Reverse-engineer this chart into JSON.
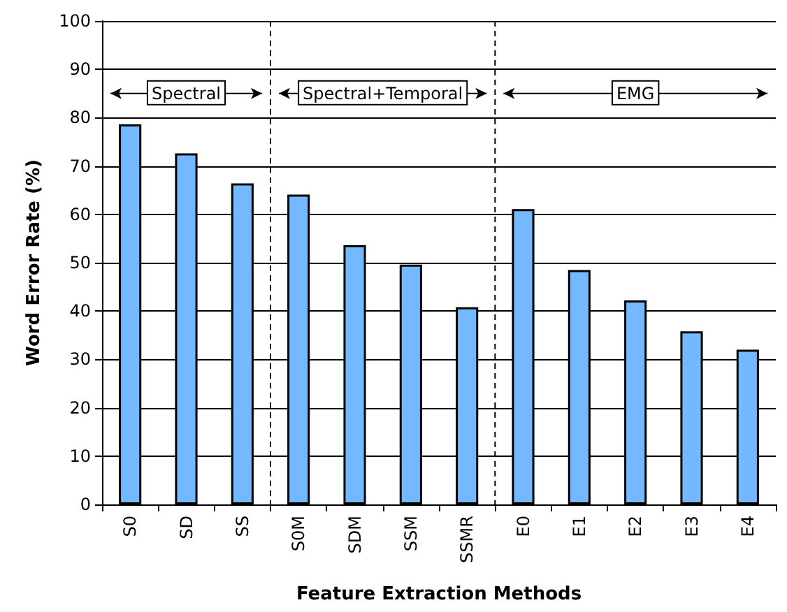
{
  "chart_data": {
    "type": "bar",
    "xlabel": "Feature Extraction Methods",
    "ylabel": "Word Error Rate (%)",
    "categories": [
      "S0",
      "SD",
      "SS",
      "S0M",
      "SDM",
      "SSM",
      "SSMR",
      "E0",
      "E1",
      "E2",
      "E3",
      "E4"
    ],
    "values": [
      78.6,
      72.6,
      66.4,
      64.1,
      53.6,
      49.6,
      40.8,
      61.1,
      48.5,
      42.2,
      35.8,
      32.0
    ],
    "color": "#74b9ff",
    "ylim": [
      0,
      100
    ],
    "yticks": [
      0,
      10,
      20,
      30,
      40,
      50,
      60,
      70,
      80,
      90,
      100
    ],
    "grid": "y",
    "annotations": [
      "Spectral",
      "Spectral+Temporal",
      "EMG"
    ]
  }
}
